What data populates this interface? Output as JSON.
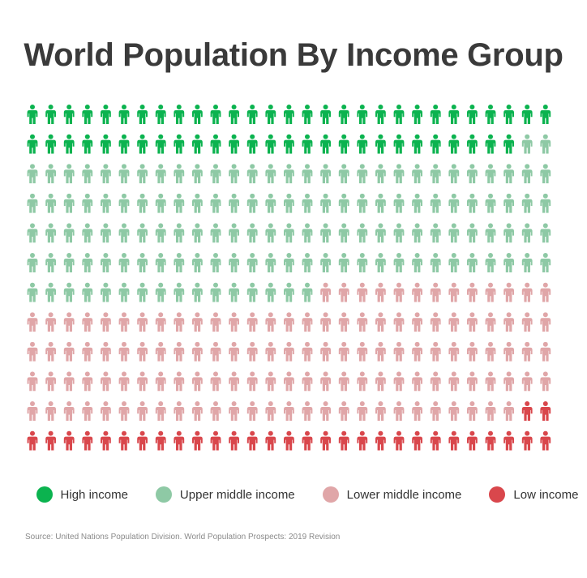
{
  "title": "World Population By Income Group",
  "source": "Source: United Nations Population Division. World Population Prospects: 2019 Revision",
  "legend": [
    {
      "label": "High income",
      "color": "#0bb34f"
    },
    {
      "label": "Upper middle income",
      "color": "#8ec9a5"
    },
    {
      "label": "Lower middle income",
      "color": "#e0a6a8"
    },
    {
      "label": "Low income",
      "color": "#d9474c"
    }
  ],
  "chart_data": {
    "type": "waffle-pictogram",
    "icon": "person-icon",
    "rows": 12,
    "columns": 29,
    "categories": [
      "High income",
      "Upper middle income",
      "Lower middle income",
      "Low income"
    ],
    "values": [
      56,
      134,
      127,
      31
    ],
    "total_icons": 348,
    "colors": [
      "#0bb34f",
      "#8ec9a5",
      "#e0a6a8",
      "#d9474c"
    ]
  }
}
